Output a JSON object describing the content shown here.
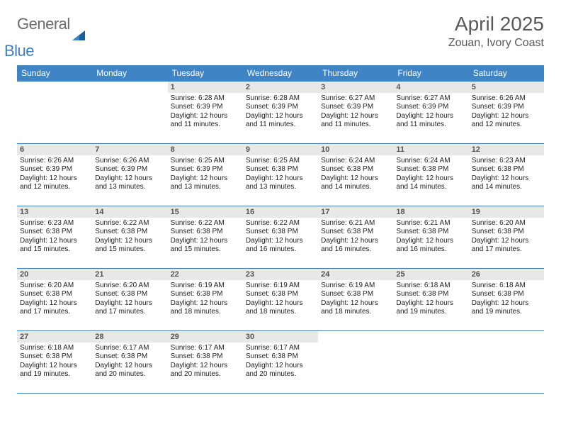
{
  "brand": {
    "part1": "General",
    "part2": "Blue",
    "accent_color": "#1a5f9e"
  },
  "title": "April 2025",
  "location": "Zouan, Ivory Coast",
  "colors": {
    "header_bg": "#3f85c6",
    "header_text": "#ffffff",
    "daynum_bg": "#e8e8e8",
    "rule": "#3f7fbf",
    "title_text": "#5a5a5a"
  },
  "fonts": {
    "title_size_pt": 21,
    "location_size_pt": 12,
    "dayheader_size_pt": 9,
    "body_size_pt": 7.5
  },
  "day_headers": [
    "Sunday",
    "Monday",
    "Tuesday",
    "Wednesday",
    "Thursday",
    "Friday",
    "Saturday"
  ],
  "weeks": [
    [
      {
        "n": "",
        "sr": "",
        "ss": "",
        "dl": ""
      },
      {
        "n": "",
        "sr": "",
        "ss": "",
        "dl": ""
      },
      {
        "n": "1",
        "sr": "Sunrise: 6:28 AM",
        "ss": "Sunset: 6:39 PM",
        "dl": "Daylight: 12 hours and 11 minutes."
      },
      {
        "n": "2",
        "sr": "Sunrise: 6:28 AM",
        "ss": "Sunset: 6:39 PM",
        "dl": "Daylight: 12 hours and 11 minutes."
      },
      {
        "n": "3",
        "sr": "Sunrise: 6:27 AM",
        "ss": "Sunset: 6:39 PM",
        "dl": "Daylight: 12 hours and 11 minutes."
      },
      {
        "n": "4",
        "sr": "Sunrise: 6:27 AM",
        "ss": "Sunset: 6:39 PM",
        "dl": "Daylight: 12 hours and 11 minutes."
      },
      {
        "n": "5",
        "sr": "Sunrise: 6:26 AM",
        "ss": "Sunset: 6:39 PM",
        "dl": "Daylight: 12 hours and 12 minutes."
      }
    ],
    [
      {
        "n": "6",
        "sr": "Sunrise: 6:26 AM",
        "ss": "Sunset: 6:39 PM",
        "dl": "Daylight: 12 hours and 12 minutes."
      },
      {
        "n": "7",
        "sr": "Sunrise: 6:26 AM",
        "ss": "Sunset: 6:39 PM",
        "dl": "Daylight: 12 hours and 13 minutes."
      },
      {
        "n": "8",
        "sr": "Sunrise: 6:25 AM",
        "ss": "Sunset: 6:39 PM",
        "dl": "Daylight: 12 hours and 13 minutes."
      },
      {
        "n": "9",
        "sr": "Sunrise: 6:25 AM",
        "ss": "Sunset: 6:38 PM",
        "dl": "Daylight: 12 hours and 13 minutes."
      },
      {
        "n": "10",
        "sr": "Sunrise: 6:24 AM",
        "ss": "Sunset: 6:38 PM",
        "dl": "Daylight: 12 hours and 14 minutes."
      },
      {
        "n": "11",
        "sr": "Sunrise: 6:24 AM",
        "ss": "Sunset: 6:38 PM",
        "dl": "Daylight: 12 hours and 14 minutes."
      },
      {
        "n": "12",
        "sr": "Sunrise: 6:23 AM",
        "ss": "Sunset: 6:38 PM",
        "dl": "Daylight: 12 hours and 14 minutes."
      }
    ],
    [
      {
        "n": "13",
        "sr": "Sunrise: 6:23 AM",
        "ss": "Sunset: 6:38 PM",
        "dl": "Daylight: 12 hours and 15 minutes."
      },
      {
        "n": "14",
        "sr": "Sunrise: 6:22 AM",
        "ss": "Sunset: 6:38 PM",
        "dl": "Daylight: 12 hours and 15 minutes."
      },
      {
        "n": "15",
        "sr": "Sunrise: 6:22 AM",
        "ss": "Sunset: 6:38 PM",
        "dl": "Daylight: 12 hours and 15 minutes."
      },
      {
        "n": "16",
        "sr": "Sunrise: 6:22 AM",
        "ss": "Sunset: 6:38 PM",
        "dl": "Daylight: 12 hours and 16 minutes."
      },
      {
        "n": "17",
        "sr": "Sunrise: 6:21 AM",
        "ss": "Sunset: 6:38 PM",
        "dl": "Daylight: 12 hours and 16 minutes."
      },
      {
        "n": "18",
        "sr": "Sunrise: 6:21 AM",
        "ss": "Sunset: 6:38 PM",
        "dl": "Daylight: 12 hours and 16 minutes."
      },
      {
        "n": "19",
        "sr": "Sunrise: 6:20 AM",
        "ss": "Sunset: 6:38 PM",
        "dl": "Daylight: 12 hours and 17 minutes."
      }
    ],
    [
      {
        "n": "20",
        "sr": "Sunrise: 6:20 AM",
        "ss": "Sunset: 6:38 PM",
        "dl": "Daylight: 12 hours and 17 minutes."
      },
      {
        "n": "21",
        "sr": "Sunrise: 6:20 AM",
        "ss": "Sunset: 6:38 PM",
        "dl": "Daylight: 12 hours and 17 minutes."
      },
      {
        "n": "22",
        "sr": "Sunrise: 6:19 AM",
        "ss": "Sunset: 6:38 PM",
        "dl": "Daylight: 12 hours and 18 minutes."
      },
      {
        "n": "23",
        "sr": "Sunrise: 6:19 AM",
        "ss": "Sunset: 6:38 PM",
        "dl": "Daylight: 12 hours and 18 minutes."
      },
      {
        "n": "24",
        "sr": "Sunrise: 6:19 AM",
        "ss": "Sunset: 6:38 PM",
        "dl": "Daylight: 12 hours and 18 minutes."
      },
      {
        "n": "25",
        "sr": "Sunrise: 6:18 AM",
        "ss": "Sunset: 6:38 PM",
        "dl": "Daylight: 12 hours and 19 minutes."
      },
      {
        "n": "26",
        "sr": "Sunrise: 6:18 AM",
        "ss": "Sunset: 6:38 PM",
        "dl": "Daylight: 12 hours and 19 minutes."
      }
    ],
    [
      {
        "n": "27",
        "sr": "Sunrise: 6:18 AM",
        "ss": "Sunset: 6:38 PM",
        "dl": "Daylight: 12 hours and 19 minutes."
      },
      {
        "n": "28",
        "sr": "Sunrise: 6:17 AM",
        "ss": "Sunset: 6:38 PM",
        "dl": "Daylight: 12 hours and 20 minutes."
      },
      {
        "n": "29",
        "sr": "Sunrise: 6:17 AM",
        "ss": "Sunset: 6:38 PM",
        "dl": "Daylight: 12 hours and 20 minutes."
      },
      {
        "n": "30",
        "sr": "Sunrise: 6:17 AM",
        "ss": "Sunset: 6:38 PM",
        "dl": "Daylight: 12 hours and 20 minutes."
      },
      {
        "n": "",
        "sr": "",
        "ss": "",
        "dl": ""
      },
      {
        "n": "",
        "sr": "",
        "ss": "",
        "dl": ""
      },
      {
        "n": "",
        "sr": "",
        "ss": "",
        "dl": ""
      }
    ]
  ]
}
